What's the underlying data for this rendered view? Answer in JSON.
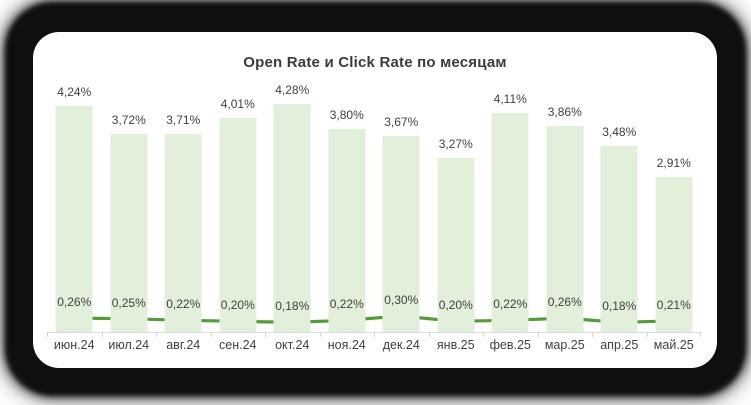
{
  "chart_data": {
    "type": "bar",
    "title": "Open Rate и Click Rate по месяцам",
    "categories": [
      "июн.24",
      "июл.24",
      "авг.24",
      "сен.24",
      "окт.24",
      "ноя.24",
      "дек.24",
      "янв.25",
      "фев.25",
      "мар.25",
      "апр.25",
      "май.25"
    ],
    "series": [
      {
        "name": "Open Rate",
        "kind": "bar",
        "color": "#e2efda",
        "values": [
          4.24,
          3.72,
          3.71,
          4.01,
          4.28,
          3.8,
          3.67,
          3.27,
          4.11,
          3.86,
          3.48,
          2.91
        ]
      },
      {
        "name": "Click Rate",
        "kind": "line",
        "color": "#569b39",
        "marker_color": "#4a8c30",
        "values": [
          0.26,
          0.25,
          0.22,
          0.2,
          0.18,
          0.22,
          0.3,
          0.2,
          0.22,
          0.26,
          0.18,
          0.21
        ]
      }
    ],
    "label_format": "comma-decimal-percent",
    "data_labels": true,
    "ylim": [
      0,
      4.5
    ],
    "grid": false,
    "legend": "none",
    "axis_color": "#d9d9d9",
    "label_color": "#404040"
  }
}
